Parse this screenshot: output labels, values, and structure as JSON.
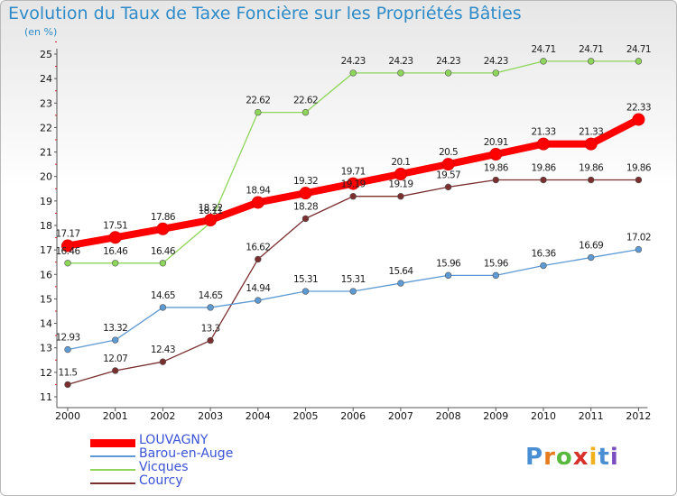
{
  "title": "Evolution du Taux de Taxe Foncière sur les Propriétés Bâties",
  "unit": "(en %)",
  "brand": {
    "text": "Proxiti",
    "letter_colors": [
      "#4a8fd4",
      "#e87b1e",
      "#59b83e",
      "#d8312b",
      "#f0b020",
      "#4a8fd4",
      "#7c4fc0"
    ]
  },
  "chart_data": {
    "type": "line",
    "title": "Evolution du Taux de Taxe Foncière sur les Propriétés Bâties",
    "ylabel": "(en %)",
    "xlabel": "",
    "ylim": [
      11,
      25
    ],
    "y_ticks": [
      11,
      12,
      13,
      14,
      15,
      16,
      17,
      18,
      19,
      20,
      21,
      22,
      23,
      24,
      25
    ],
    "x": [
      "2000",
      "2001",
      "2002",
      "2003",
      "2004",
      "2005",
      "2006",
      "2007",
      "2008",
      "2009",
      "2010",
      "2011",
      "2012"
    ],
    "grid": false,
    "legend_position": "bottom-left",
    "series": [
      {
        "name": "LOUVAGNY",
        "color": "#ff0000",
        "values": [
          17.17,
          17.51,
          17.86,
          18.22,
          18.94,
          19.32,
          19.71,
          20.1,
          20.5,
          20.91,
          21.33,
          21.33,
          22.33
        ],
        "labels": [
          "17.17",
          "17.51",
          "17.86",
          "18.22",
          "18.94",
          "19.32",
          "19.71",
          "20.1",
          "20.5",
          "20.91",
          "21.33",
          "21.33",
          "22.33"
        ]
      },
      {
        "name": "Barou-en-Auge",
        "color": "#5e9ad3",
        "values": [
          12.93,
          13.32,
          14.65,
          14.65,
          14.94,
          15.31,
          15.31,
          15.64,
          15.96,
          15.96,
          16.36,
          16.69,
          17.02
        ],
        "labels": [
          "12.93",
          "13.32",
          "14.65",
          "14.65",
          "14.94",
          "15.31",
          "15.31",
          "15.64",
          "15.96",
          "15.96",
          "16.36",
          "16.69",
          "17.02"
        ]
      },
      {
        "name": "Vicques",
        "color": "#8ed65a",
        "values": [
          16.46,
          16.46,
          16.46,
          18.11,
          22.62,
          22.62,
          24.23,
          24.23,
          24.23,
          24.23,
          24.71,
          24.71,
          24.71
        ],
        "labels": [
          "16.46",
          "16.46",
          "16.46",
          "18.11",
          "22.62",
          "22.62",
          "24.23",
          "24.23",
          "24.23",
          "24.23",
          "24.71",
          "24.71",
          "24.71"
        ]
      },
      {
        "name": "Courcy",
        "color": "#7a2e2e",
        "values": [
          11.5,
          12.07,
          12.43,
          13.3,
          16.62,
          18.28,
          19.19,
          19.19,
          19.57,
          19.86,
          19.86,
          19.86,
          19.86
        ],
        "labels": [
          "11.5",
          "12.07",
          "12.43",
          "13.3",
          "16.62",
          "18.28",
          "19.19",
          "19.19",
          "19.57",
          "19.86",
          "19.86",
          "19.86",
          "19.86"
        ]
      }
    ]
  }
}
